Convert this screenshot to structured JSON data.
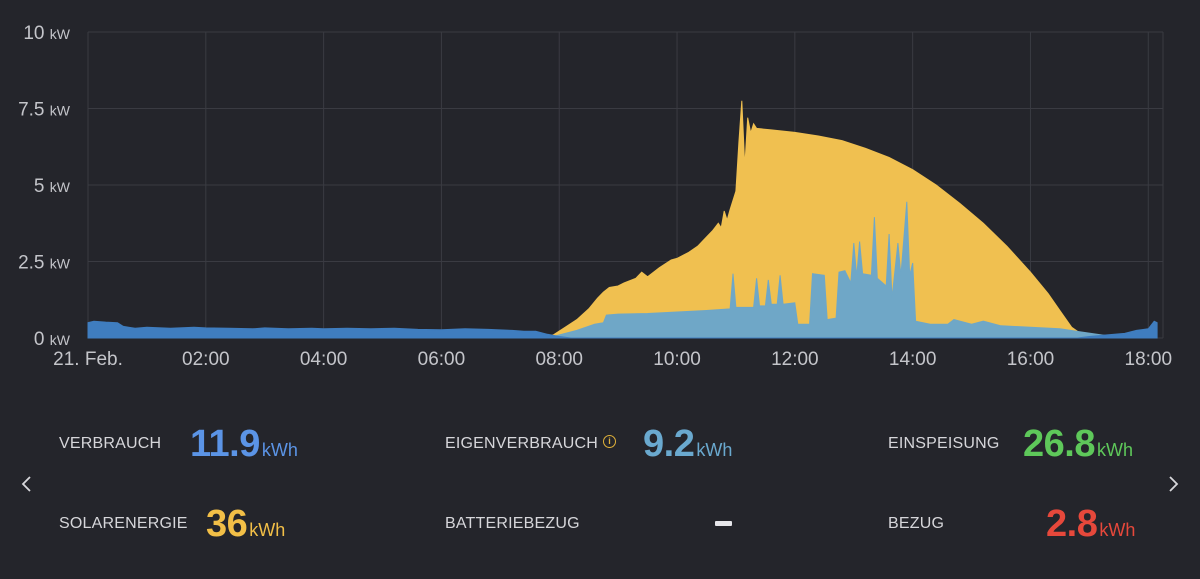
{
  "chart_data": {
    "type": "area",
    "y_unit": "kW",
    "ylim": [
      0,
      10
    ],
    "y_ticks": [
      {
        "value": 0,
        "num": "0",
        "unit": "kW"
      },
      {
        "value": 2.5,
        "num": "2.5",
        "unit": "kW"
      },
      {
        "value": 5,
        "num": "5",
        "unit": "kW"
      },
      {
        "value": 7.5,
        "num": "7.5",
        "unit": "kW"
      },
      {
        "value": 10,
        "num": "10",
        "unit": "kW"
      }
    ],
    "x_range_hours": [
      0,
      18.25
    ],
    "x_ticks": [
      {
        "hour": 0,
        "label": "21. Feb."
      },
      {
        "hour": 2,
        "label": "02:00"
      },
      {
        "hour": 4,
        "label": "04:00"
      },
      {
        "hour": 6,
        "label": "06:00"
      },
      {
        "hour": 8,
        "label": "08:00"
      },
      {
        "hour": 10,
        "label": "10:00"
      },
      {
        "hour": 12,
        "label": "12:00"
      },
      {
        "hour": 14,
        "label": "14:00"
      },
      {
        "hour": 16,
        "label": "16:00"
      },
      {
        "hour": 18,
        "label": "18:00"
      }
    ],
    "grid": true,
    "series": [
      {
        "color": "#f0c050",
        "points": [
          [
            7.7,
            0
          ],
          [
            7.9,
            0.1
          ],
          [
            8.1,
            0.35
          ],
          [
            8.3,
            0.6
          ],
          [
            8.5,
            0.95
          ],
          [
            8.65,
            1.3
          ],
          [
            8.75,
            1.5
          ],
          [
            8.85,
            1.65
          ],
          [
            9.0,
            1.7
          ],
          [
            9.1,
            1.8
          ],
          [
            9.3,
            1.95
          ],
          [
            9.4,
            2.15
          ],
          [
            9.5,
            2.0
          ],
          [
            9.7,
            2.3
          ],
          [
            9.9,
            2.55
          ],
          [
            10.0,
            2.6
          ],
          [
            10.2,
            2.8
          ],
          [
            10.35,
            3.0
          ],
          [
            10.5,
            3.3
          ],
          [
            10.6,
            3.5
          ],
          [
            10.7,
            3.75
          ],
          [
            10.75,
            3.6
          ],
          [
            10.8,
            4.15
          ],
          [
            10.85,
            3.85
          ],
          [
            10.9,
            4.2
          ],
          [
            11.0,
            4.8
          ],
          [
            11.05,
            6.4
          ],
          [
            11.1,
            7.75
          ],
          [
            11.15,
            5.6
          ],
          [
            11.2,
            7.2
          ],
          [
            11.25,
            6.7
          ],
          [
            11.3,
            7.0
          ],
          [
            11.35,
            6.85
          ],
          [
            11.6,
            6.8
          ],
          [
            12.0,
            6.72
          ],
          [
            12.4,
            6.6
          ],
          [
            12.8,
            6.45
          ],
          [
            13.2,
            6.2
          ],
          [
            13.6,
            5.9
          ],
          [
            14.0,
            5.5
          ],
          [
            14.4,
            5.0
          ],
          [
            14.8,
            4.4
          ],
          [
            15.2,
            3.75
          ],
          [
            15.6,
            3.0
          ],
          [
            16.0,
            2.15
          ],
          [
            16.3,
            1.45
          ],
          [
            16.5,
            0.9
          ],
          [
            16.7,
            0.35
          ],
          [
            16.85,
            0.15
          ],
          [
            17.2,
            0.05
          ],
          [
            17.6,
            0
          ]
        ]
      },
      {
        "color": "#6fa7c7",
        "points": [
          [
            7.6,
            0
          ],
          [
            7.9,
            0.05
          ],
          [
            8.3,
            0.25
          ],
          [
            8.6,
            0.45
          ],
          [
            8.75,
            0.5
          ],
          [
            8.8,
            0.75
          ],
          [
            9.0,
            0.78
          ],
          [
            9.5,
            0.8
          ],
          [
            10.0,
            0.85
          ],
          [
            10.5,
            0.9
          ],
          [
            10.9,
            0.95
          ],
          [
            10.95,
            2.1
          ],
          [
            11.0,
            1.0
          ],
          [
            11.3,
            1.0
          ],
          [
            11.35,
            1.95
          ],
          [
            11.4,
            1.05
          ],
          [
            11.5,
            1.05
          ],
          [
            11.55,
            1.9
          ],
          [
            11.6,
            1.1
          ],
          [
            11.7,
            1.1
          ],
          [
            11.75,
            2.05
          ],
          [
            11.8,
            1.1
          ],
          [
            12.0,
            1.15
          ],
          [
            12.05,
            0.45
          ],
          [
            12.25,
            0.45
          ],
          [
            12.3,
            2.1
          ],
          [
            12.5,
            2.05
          ],
          [
            12.55,
            0.6
          ],
          [
            12.7,
            0.65
          ],
          [
            12.75,
            2.15
          ],
          [
            12.85,
            2.2
          ],
          [
            12.95,
            1.8
          ],
          [
            13.0,
            3.1
          ],
          [
            13.05,
            2.0
          ],
          [
            13.1,
            3.15
          ],
          [
            13.15,
            2.1
          ],
          [
            13.3,
            2.05
          ],
          [
            13.35,
            3.95
          ],
          [
            13.4,
            1.95
          ],
          [
            13.55,
            1.7
          ],
          [
            13.6,
            3.4
          ],
          [
            13.65,
            1.3
          ],
          [
            13.75,
            3.1
          ],
          [
            13.8,
            2.05
          ],
          [
            13.9,
            4.45
          ],
          [
            13.95,
            2.05
          ],
          [
            14.0,
            2.45
          ],
          [
            14.05,
            0.55
          ],
          [
            14.3,
            0.45
          ],
          [
            14.6,
            0.45
          ],
          [
            14.7,
            0.6
          ],
          [
            15.0,
            0.45
          ],
          [
            15.2,
            0.55
          ],
          [
            15.5,
            0.4
          ],
          [
            16.0,
            0.35
          ],
          [
            16.5,
            0.3
          ],
          [
            16.85,
            0.2
          ],
          [
            17.2,
            0.1
          ],
          [
            17.6,
            0
          ]
        ]
      },
      {
        "color": "#3f7dbf",
        "points": [
          [
            0,
            0.5
          ],
          [
            0.1,
            0.55
          ],
          [
            0.3,
            0.52
          ],
          [
            0.5,
            0.5
          ],
          [
            0.6,
            0.38
          ],
          [
            0.8,
            0.32
          ],
          [
            1.0,
            0.35
          ],
          [
            1.4,
            0.32
          ],
          [
            1.8,
            0.35
          ],
          [
            2.0,
            0.33
          ],
          [
            2.4,
            0.32
          ],
          [
            2.8,
            0.3
          ],
          [
            3.0,
            0.33
          ],
          [
            3.4,
            0.3
          ],
          [
            3.8,
            0.32
          ],
          [
            4.0,
            0.3
          ],
          [
            4.4,
            0.32
          ],
          [
            4.8,
            0.3
          ],
          [
            5.2,
            0.32
          ],
          [
            5.6,
            0.28
          ],
          [
            6.0,
            0.27
          ],
          [
            6.4,
            0.3
          ],
          [
            6.8,
            0.28
          ],
          [
            7.2,
            0.25
          ],
          [
            7.4,
            0.22
          ],
          [
            7.6,
            0.22
          ],
          [
            7.8,
            0.12
          ],
          [
            8.0,
            0.05
          ],
          [
            8.2,
            0
          ],
          [
            16.8,
            0
          ],
          [
            17.0,
            0.05
          ],
          [
            17.3,
            0.1
          ],
          [
            17.6,
            0.15
          ],
          [
            17.8,
            0.25
          ],
          [
            18.0,
            0.3
          ],
          [
            18.1,
            0.55
          ],
          [
            18.15,
            0.5
          ]
        ]
      }
    ]
  },
  "stats": {
    "verbrauch": {
      "label": "VERBRAUCH",
      "value": "11.9",
      "unit": "kWh",
      "color": "#5b94e6"
    },
    "eigenverbrauch": {
      "label": "EIGENVERBRAUCH",
      "value": "9.2",
      "unit": "kWh",
      "color": "#6aa9cf",
      "info_icon": "info-circle-icon"
    },
    "einspeisung": {
      "label": "EINSPEISUNG",
      "value": "26.8",
      "unit": "kWh",
      "color": "#5ec85a"
    },
    "solarenergie": {
      "label": "SOLARENERGIE",
      "value": "36",
      "unit": "kWh",
      "color": "#f2bf47"
    },
    "batteriebezug": {
      "label": "BATTERIEBEZUG",
      "value_glyph": "dash-icon"
    },
    "bezug": {
      "label": "BEZUG",
      "value": "2.8",
      "unit": "kWh",
      "color": "#e6483b"
    }
  },
  "nav": {
    "prev_icon": "chevron-left-icon",
    "next_icon": "chevron-right-icon"
  }
}
